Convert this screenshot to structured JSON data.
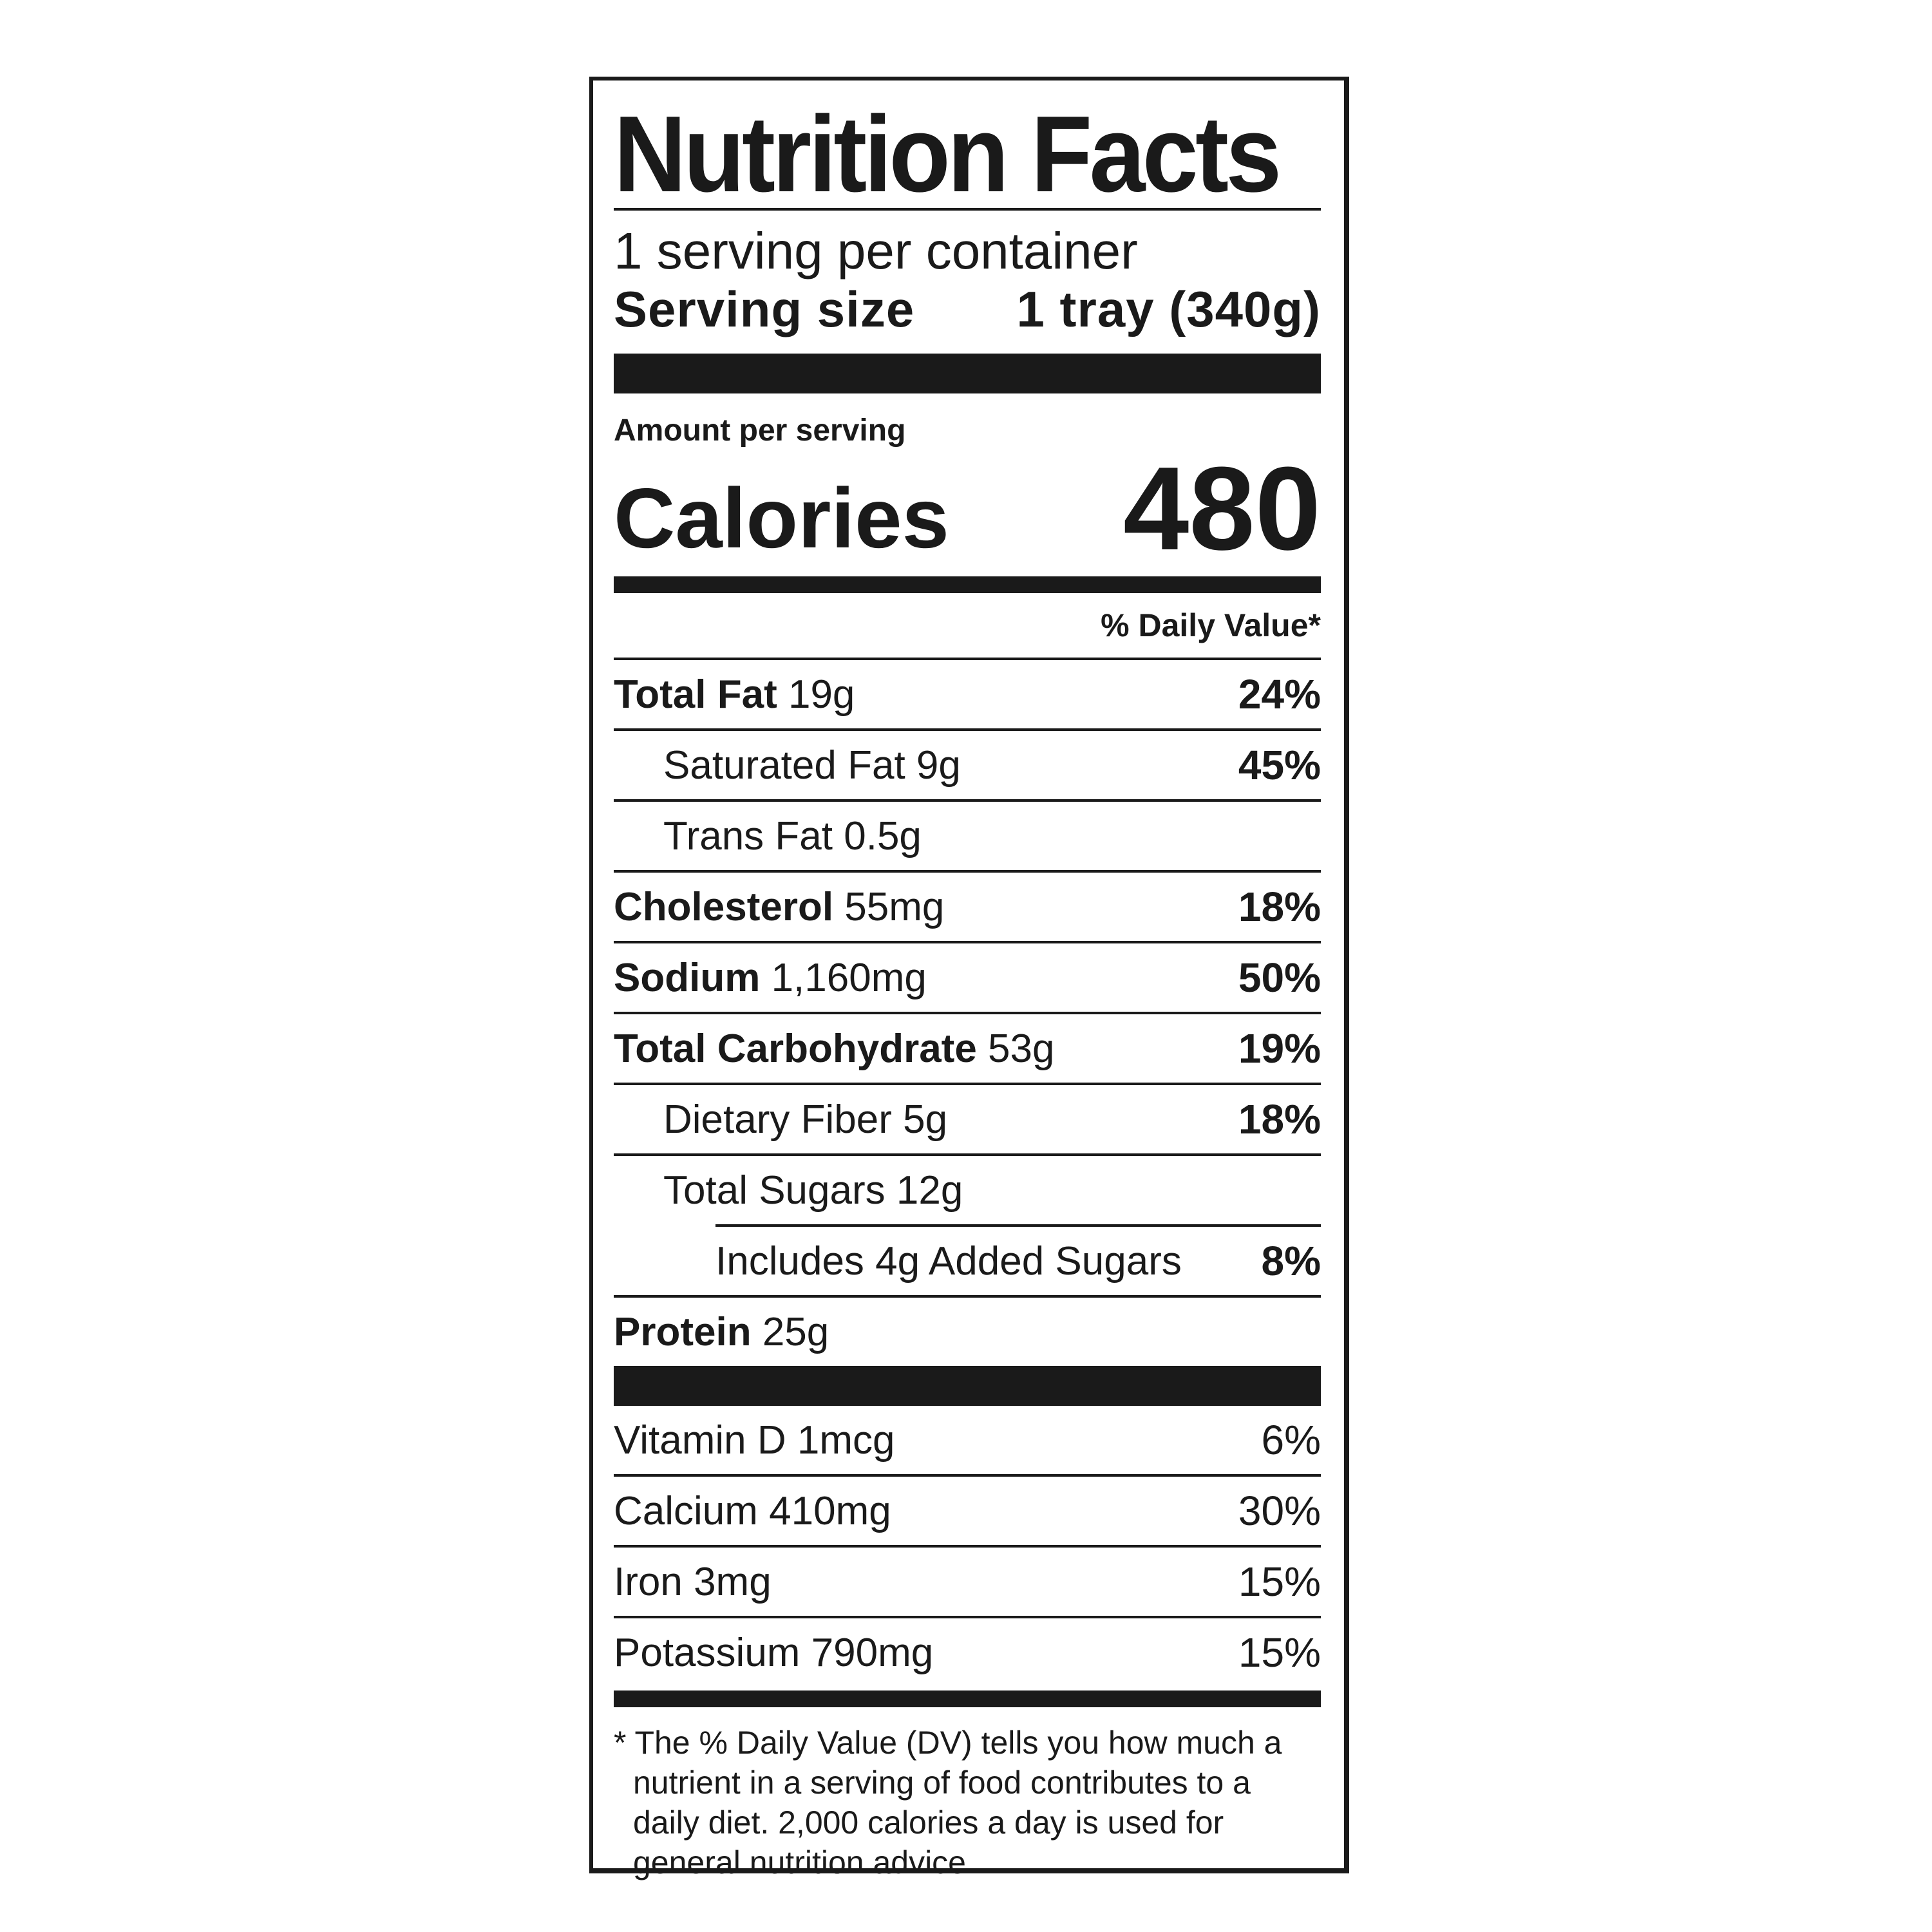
{
  "title": "Nutrition Facts",
  "servings_per_container": "1 serving per container",
  "serving_size": {
    "label": "Serving size",
    "value": "1 tray (340g)"
  },
  "amount_per_serving": "Amount per serving",
  "calories": {
    "label": "Calories",
    "value": "480"
  },
  "dv_header": "% Daily Value*",
  "nutrients": [
    {
      "name": "Total Fat",
      "amount": "19g",
      "dv": "24%"
    },
    {
      "name": "Saturated Fat",
      "amount": "9g",
      "dv": "45%"
    },
    {
      "name": "Trans Fat",
      "amount": "0.5g",
      "dv": ""
    },
    {
      "name": "Cholesterol",
      "amount": "55mg",
      "dv": "18%"
    },
    {
      "name": "Sodium",
      "amount": "1,160mg",
      "dv": "50%"
    },
    {
      "name": "Total Carbohydrate",
      "amount": "53g",
      "dv": "19%"
    },
    {
      "name": "Dietary Fiber",
      "amount": "5g",
      "dv": "18%"
    },
    {
      "name": "Total Sugars",
      "amount": "12g",
      "dv": ""
    },
    {
      "name": "Includes 4g Added Sugars",
      "amount": "",
      "dv": "8%"
    },
    {
      "name": "Protein",
      "amount": "25g",
      "dv": ""
    }
  ],
  "vitamins": [
    {
      "name": "Vitamin D",
      "amount": "1mcg",
      "dv": "6%"
    },
    {
      "name": "Calcium",
      "amount": "410mg",
      "dv": "30%"
    },
    {
      "name": "Iron",
      "amount": "3mg",
      "dv": "15%"
    },
    {
      "name": "Potassium",
      "amount": "790mg",
      "dv": "15%"
    }
  ],
  "footnote": "* The % Daily Value (DV) tells you how much a nutrient in a serving of food contributes to a daily diet. 2,000 calories a day is used for general nutrition advice."
}
